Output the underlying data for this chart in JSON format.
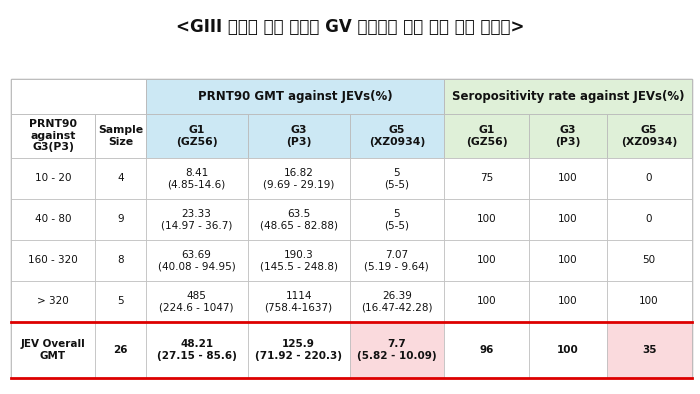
{
  "title": "<GIII 유전형 기반 백신의 GV 유전형에 대한 낙은 교차 방어능>",
  "title_fontsize": 13,
  "col_header_row2": [
    "PRNT90\nagainst\nG3(P3)",
    "Sample\nSize",
    "G1\n(GZ56)",
    "G3\n(P3)",
    "G5\n(XZ0934)",
    "G1\n(GZ56)",
    "G3\n(P3)",
    "G5\n(XZ0934)"
  ],
  "rows": [
    [
      "10 - 20",
      "4",
      "8.41\n(4.85-14.6)",
      "16.82\n(9.69 - 29.19)",
      "5\n(5-5)",
      "75",
      "100",
      "0"
    ],
    [
      "40 - 80",
      "9",
      "23.33\n(14.97 - 36.7)",
      "63.5\n(48.65 - 82.88)",
      "5\n(5-5)",
      "100",
      "100",
      "0"
    ],
    [
      "160 - 320",
      "8",
      "63.69\n(40.08 - 94.95)",
      "190.3\n(145.5 - 248.8)",
      "7.07\n(5.19 - 9.64)",
      "100",
      "100",
      "50"
    ],
    [
      "> 320",
      "5",
      "485\n(224.6 - 1047)",
      "1114\n(758.4-1637)",
      "26.39\n(16.47-42.28)",
      "100",
      "100",
      "100"
    ]
  ],
  "footer_row": [
    "JEV Overall\nGMT",
    "26",
    "48.21\n(27.15 - 85.6)",
    "125.9\n(71.92 - 220.3)",
    "7.7\n(5.82 - 10.09)",
    "96",
    "100",
    "35"
  ],
  "prnt90_header_color": "#cce8f4",
  "sero_header_color": "#dff0d8",
  "footer_highlight_g5_prnt": "#fadadd",
  "footer_highlight_g5_sero": "#fadadd",
  "border_color": "#bbbbbb",
  "footer_border_color": "#dd0000",
  "text_color": "#111111"
}
